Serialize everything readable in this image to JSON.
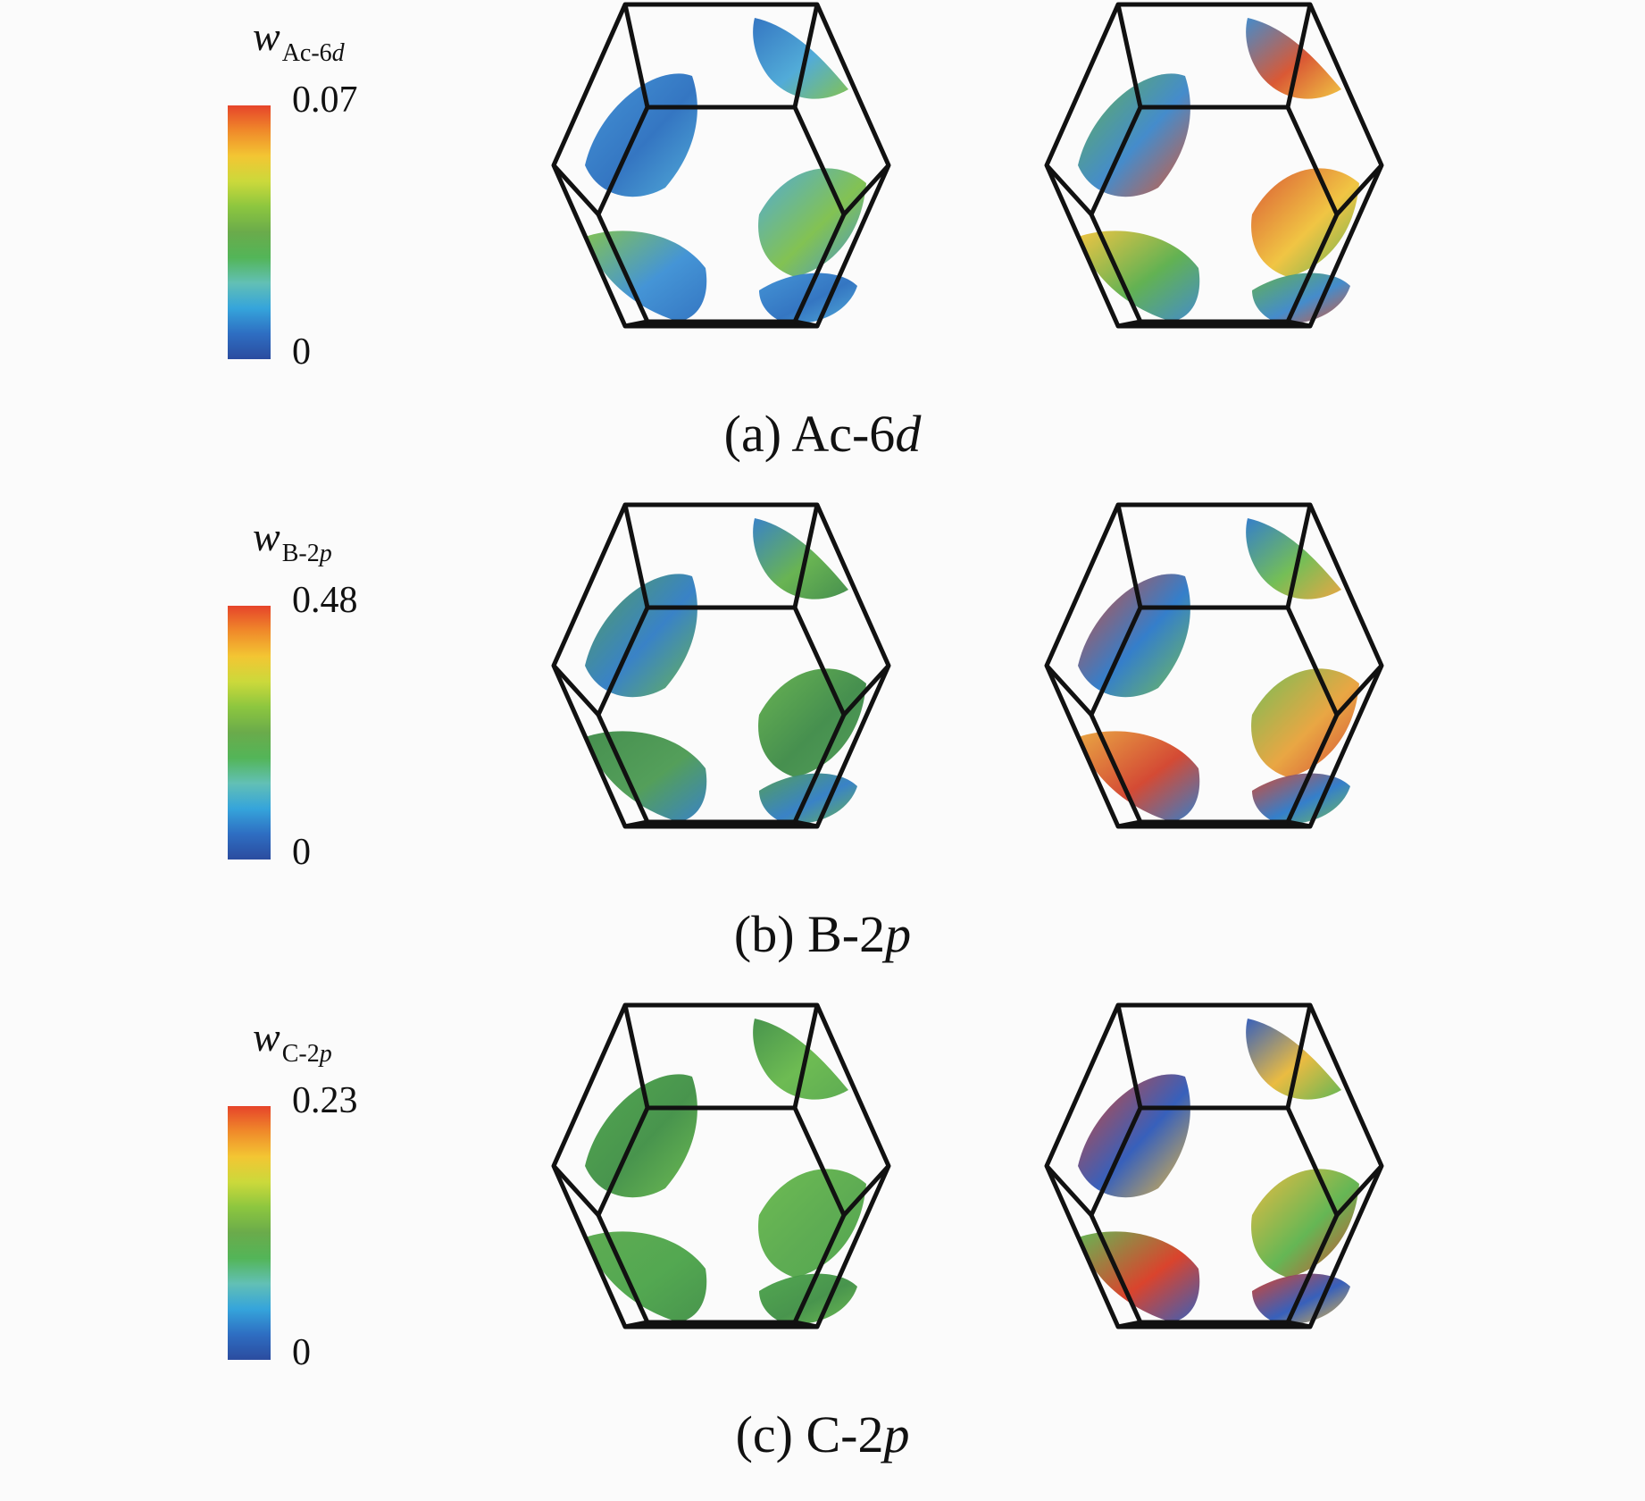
{
  "panels": [
    {
      "label": "(a)",
      "name": "Ac-6",
      "suffix": "d",
      "legend": {
        "symbol": "w",
        "subscript_main": "Ac-6",
        "subscript_italic": "d",
        "max": "0.07",
        "min": "0"
      },
      "left_palette": [
        "#3b8fd4",
        "#2a6fbf",
        "#49a7d6",
        "#7cbf4a"
      ],
      "right_palette": [
        "#5aae4a",
        "#3b86c9",
        "#d8502a",
        "#f0c23a"
      ]
    },
    {
      "label": "(b)",
      "name": "B-2",
      "suffix": "p",
      "legend": {
        "symbol": "w",
        "subscript_main": "B-2",
        "subscript_italic": "p",
        "max": "0.48",
        "min": "0"
      },
      "left_palette": [
        "#4b9a52",
        "#2f7cc4",
        "#61b04a",
        "#3d8a46"
      ],
      "right_palette": [
        "#d2412a",
        "#2a78c8",
        "#6dbb4e",
        "#e8a23a"
      ]
    },
    {
      "label": "(c)",
      "name": "C-2",
      "suffix": "p",
      "legend": {
        "symbol": "w",
        "subscript_main": "C-2",
        "subscript_italic": "p",
        "max": "0.23",
        "min": "0"
      },
      "left_palette": [
        "#4aa348",
        "#3f8f44",
        "#66b84a",
        "#56a84a"
      ],
      "right_palette": [
        "#d83a22",
        "#2d58b8",
        "#e9b838",
        "#5db34c"
      ]
    }
  ],
  "colorbar_colors": [
    "#2b4c9f",
    "#2e6ec2",
    "#35a4db",
    "#62c0b5",
    "#53b558",
    "#6aab4b",
    "#8cc63f",
    "#cbd93b",
    "#f3c633",
    "#f08a2a",
    "#e6442a"
  ]
}
